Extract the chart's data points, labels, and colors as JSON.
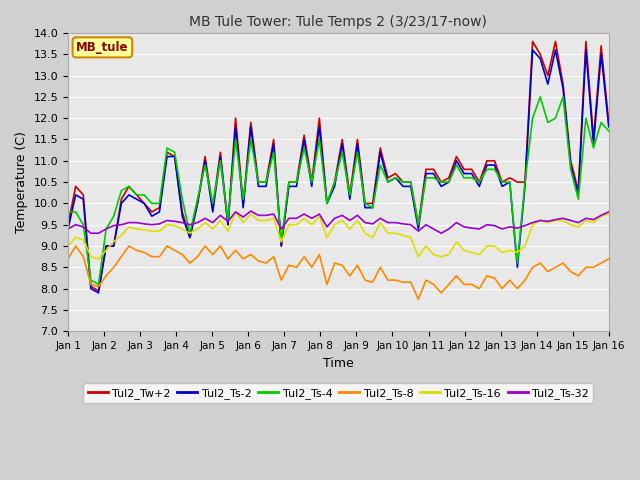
{
  "title": "MB Tule Tower: Tule Temps 2 (3/23/17-now)",
  "xlabel": "Time",
  "ylabel": "Temperature (C)",
  "ylim": [
    7.0,
    14.0
  ],
  "yticks": [
    7.0,
    7.5,
    8.0,
    8.5,
    9.0,
    9.5,
    10.0,
    10.5,
    11.0,
    11.5,
    12.0,
    12.5,
    13.0,
    13.5,
    14.0
  ],
  "x_labels": [
    "Jan 1",
    "Jan 2",
    "Jan 3",
    "Jan 4",
    "Jan 5",
    "Jan 6",
    "Jan 7",
    "Jan 8",
    "Jan 9",
    "Jan 10",
    "Jan 11",
    "Jan 12",
    "Jan 13",
    "Jan 14",
    "Jan 15",
    "Jan 16"
  ],
  "colors": {
    "Tul2_Tw+2": "#cc0000",
    "Tul2_Ts-2": "#0000cc",
    "Tul2_Ts-4": "#00cc00",
    "Tul2_Ts-8": "#ff8800",
    "Tul2_Ts-16": "#dddd00",
    "Tul2_Ts-32": "#9900cc"
  },
  "fig_bg": "#d0d0d0",
  "ax_bg": "#e8e8e8",
  "grid_color": "#ffffff",
  "legend_facecolor": "#ffff99",
  "legend_edgecolor": "#cc8800",
  "tw2": [
    9.5,
    10.4,
    10.2,
    8.05,
    7.95,
    9.0,
    9.0,
    10.1,
    10.4,
    10.2,
    10.0,
    9.8,
    9.9,
    11.2,
    11.1,
    9.8,
    9.2,
    10.0,
    11.1,
    9.9,
    11.2,
    9.5,
    12.0,
    10.0,
    11.9,
    10.5,
    10.5,
    11.5,
    9.0,
    10.5,
    10.5,
    11.6,
    10.5,
    12.0,
    10.0,
    10.5,
    11.5,
    10.2,
    11.5,
    10.0,
    10.0,
    11.3,
    10.6,
    10.7,
    10.5,
    10.5,
    9.5,
    10.8,
    10.8,
    10.5,
    10.6,
    11.1,
    10.8,
    10.8,
    10.5,
    11.0,
    11.0,
    10.5,
    10.6,
    10.5,
    10.5,
    13.8,
    13.5,
    13.0,
    13.8,
    12.8,
    11.0,
    10.3,
    13.8,
    11.5,
    13.7,
    11.9
  ],
  "ts2": [
    9.4,
    10.2,
    10.1,
    8.0,
    7.9,
    9.0,
    9.0,
    10.0,
    10.2,
    10.1,
    10.0,
    9.7,
    9.8,
    11.1,
    11.1,
    9.7,
    9.2,
    10.0,
    11.0,
    9.8,
    11.1,
    9.5,
    11.8,
    9.9,
    11.8,
    10.4,
    10.4,
    11.4,
    9.0,
    10.4,
    10.4,
    11.5,
    10.4,
    11.8,
    10.0,
    10.4,
    11.4,
    10.1,
    11.4,
    9.9,
    9.9,
    11.2,
    10.5,
    10.6,
    10.4,
    10.4,
    9.4,
    10.7,
    10.7,
    10.4,
    10.5,
    11.0,
    10.7,
    10.7,
    10.4,
    10.9,
    10.9,
    10.4,
    10.5,
    8.5,
    10.4,
    13.6,
    13.4,
    12.8,
    13.6,
    12.7,
    10.9,
    10.2,
    13.6,
    11.4,
    13.5,
    11.8
  ],
  "ts4": [
    9.8,
    9.8,
    9.5,
    8.2,
    8.1,
    9.4,
    9.7,
    10.3,
    10.4,
    10.2,
    10.2,
    10.0,
    10.0,
    11.3,
    11.2,
    10.1,
    9.3,
    10.1,
    10.9,
    10.0,
    11.0,
    9.6,
    11.5,
    10.1,
    11.5,
    10.5,
    10.5,
    11.2,
    9.1,
    10.5,
    10.5,
    11.3,
    10.5,
    11.5,
    10.0,
    10.5,
    11.2,
    10.2,
    11.2,
    10.0,
    9.9,
    10.9,
    10.5,
    10.6,
    10.5,
    10.5,
    9.5,
    10.6,
    10.6,
    10.5,
    10.5,
    10.9,
    10.6,
    10.6,
    10.5,
    10.8,
    10.8,
    10.5,
    10.5,
    8.6,
    10.5,
    12.0,
    12.5,
    11.9,
    12.0,
    12.5,
    10.8,
    10.1,
    12.0,
    11.3,
    11.9,
    11.7
  ],
  "ts8": [
    8.7,
    9.0,
    8.75,
    8.1,
    8.05,
    8.3,
    8.5,
    8.75,
    9.0,
    8.9,
    8.85,
    8.75,
    8.75,
    9.0,
    8.9,
    8.8,
    8.6,
    8.75,
    9.0,
    8.8,
    9.0,
    8.7,
    8.9,
    8.7,
    8.8,
    8.65,
    8.6,
    8.75,
    8.2,
    8.55,
    8.5,
    8.75,
    8.5,
    8.8,
    8.1,
    8.6,
    8.55,
    8.3,
    8.55,
    8.2,
    8.15,
    8.5,
    8.2,
    8.2,
    8.15,
    8.15,
    7.75,
    8.2,
    8.1,
    7.9,
    8.1,
    8.3,
    8.1,
    8.1,
    8.0,
    8.3,
    8.25,
    8.0,
    8.2,
    8.0,
    8.2,
    8.5,
    8.6,
    8.4,
    8.5,
    8.6,
    8.4,
    8.3,
    8.5,
    8.5,
    8.6,
    8.7
  ],
  "ts16": [
    9.0,
    9.2,
    9.15,
    8.75,
    8.7,
    8.9,
    9.1,
    9.25,
    9.45,
    9.4,
    9.38,
    9.35,
    9.35,
    9.5,
    9.48,
    9.4,
    9.3,
    9.4,
    9.55,
    9.4,
    9.6,
    9.35,
    9.8,
    9.55,
    9.75,
    9.6,
    9.6,
    9.65,
    9.1,
    9.5,
    9.5,
    9.65,
    9.5,
    9.7,
    9.2,
    9.5,
    9.6,
    9.4,
    9.6,
    9.3,
    9.2,
    9.55,
    9.3,
    9.3,
    9.25,
    9.2,
    8.75,
    9.0,
    8.8,
    8.75,
    8.8,
    9.1,
    8.9,
    8.85,
    8.8,
    9.0,
    9.0,
    8.85,
    8.9,
    8.85,
    9.0,
    9.5,
    9.6,
    9.55,
    9.6,
    9.6,
    9.5,
    9.45,
    9.6,
    9.55,
    9.7,
    9.75
  ],
  "ts32": [
    9.4,
    9.5,
    9.45,
    9.3,
    9.3,
    9.4,
    9.48,
    9.5,
    9.55,
    9.55,
    9.52,
    9.5,
    9.52,
    9.6,
    9.58,
    9.55,
    9.5,
    9.55,
    9.65,
    9.55,
    9.72,
    9.58,
    9.8,
    9.68,
    9.82,
    9.72,
    9.72,
    9.75,
    9.4,
    9.65,
    9.65,
    9.75,
    9.65,
    9.75,
    9.45,
    9.65,
    9.72,
    9.6,
    9.72,
    9.55,
    9.52,
    9.65,
    9.55,
    9.55,
    9.52,
    9.5,
    9.35,
    9.5,
    9.4,
    9.3,
    9.4,
    9.55,
    9.45,
    9.42,
    9.4,
    9.5,
    9.48,
    9.4,
    9.45,
    9.42,
    9.48,
    9.55,
    9.6,
    9.58,
    9.62,
    9.65,
    9.6,
    9.55,
    9.65,
    9.62,
    9.72,
    9.8
  ]
}
